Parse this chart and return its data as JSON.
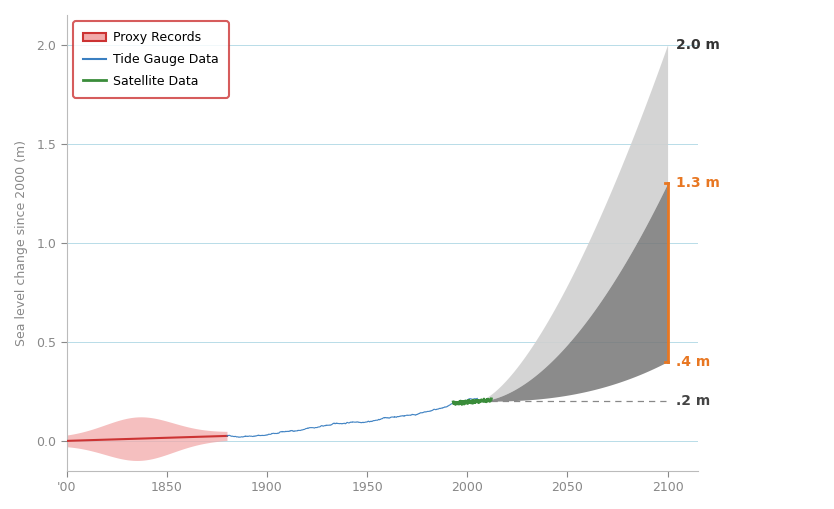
{
  "xlim": [
    1800,
    2115
  ],
  "ylim": [
    -0.15,
    2.15
  ],
  "xticks": [
    1800,
    1850,
    1900,
    1950,
    2000,
    2050,
    2100
  ],
  "xticklabels": [
    "'00",
    "1850",
    "1900",
    "1950",
    "2000",
    "2050",
    "2100"
  ],
  "yticks": [
    0.0,
    0.5,
    1.0,
    1.5,
    2.0
  ],
  "ylabel": "Sea level change since 2000 (m)",
  "background_color": "#ffffff",
  "grid_color": "#b8dce8",
  "proxy_color": "#cc3333",
  "proxy_fill": "#f2aaaa",
  "tide_color": "#3a7fc1",
  "satellite_color": "#3a8c3a",
  "likely_range_color": "#777777",
  "possible_max_color": "#d0d0d0",
  "annotation_color": "#e87722",
  "dashed_color": "#888888",
  "proxy_start_year": 1800,
  "proxy_end_year": 1880,
  "tide_start_year": 1880,
  "tide_end_year": 2005,
  "satellite_start_year": 1993,
  "satellite_end_year": 2012,
  "projection_start_year": 2005,
  "projection_end_year": 2100,
  "likely_low_2100": 0.4,
  "likely_high_2100": 1.3,
  "possible_max_2100": 2.0,
  "value_2010": 0.2,
  "legend_labels": [
    "Proxy Records",
    "Tide Gauge Data",
    "Satellite Data"
  ],
  "legend_colors": [
    "#cc3333",
    "#3a7fc1",
    "#3a8c3a"
  ],
  "annotation_2m": "2.0 m",
  "annotation_13": "1.3 m",
  "annotation_04": ".4 m",
  "annotation_02": ".2 m"
}
